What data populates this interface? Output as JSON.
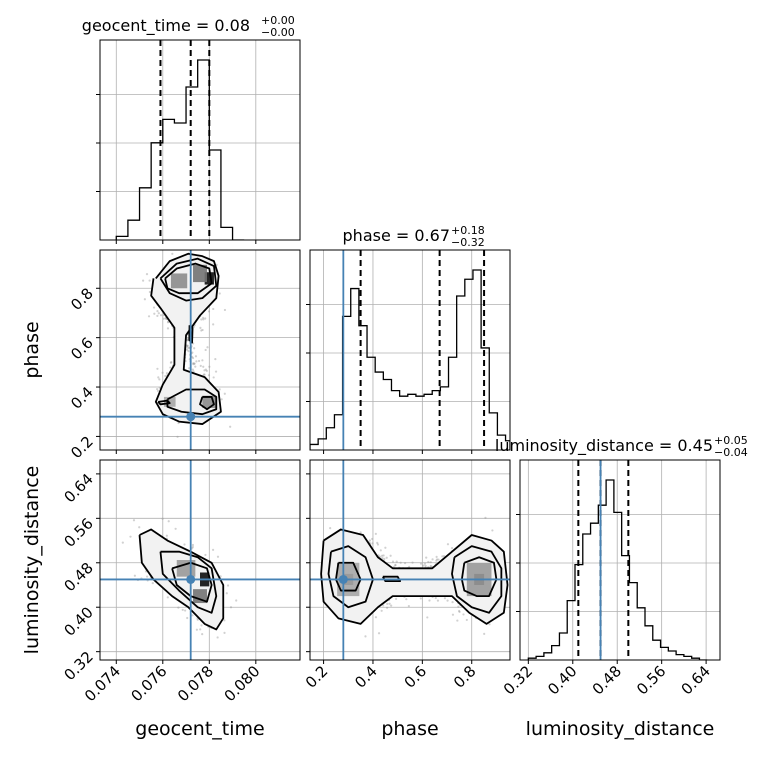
{
  "chart_data": {
    "type": "corner",
    "parameters": [
      "geocent_time",
      "phase",
      "luminosity_distance"
    ],
    "axis_labels": [
      "geocent_time",
      "phase",
      "luminosity_distance"
    ],
    "titles": [
      {
        "text": "geocent_time = 0.08",
        "sup": "+0.00",
        "sub": "−0.00"
      },
      {
        "text": "phase = 0.67",
        "sup": "+0.18",
        "sub": "−0.32"
      },
      {
        "text": "luminosity_distance = 0.45",
        "sup": "+0.05",
        "sub": "−0.04"
      }
    ],
    "ranges": [
      [
        0.0733,
        0.0819
      ],
      [
        0.145,
        0.955
      ],
      [
        0.305,
        0.665
      ]
    ],
    "ticks": [
      {
        "values": [
          0.074,
          0.076,
          0.078,
          0.08
        ],
        "labels": [
          "0.074",
          "0.076",
          "0.078",
          "0.080"
        ]
      },
      {
        "values": [
          0.2,
          0.4,
          0.6,
          0.8
        ],
        "labels": [
          "0.2",
          "0.4",
          "0.6",
          "0.8"
        ]
      },
      {
        "values": [
          0.32,
          0.4,
          0.48,
          0.56,
          0.64
        ],
        "labels": [
          "0.32",
          "0.40",
          "0.48",
          "0.56",
          "0.64"
        ]
      }
    ],
    "truths": [
      0.0772,
      0.28,
      0.45
    ],
    "truth_color": "#4682b4",
    "quantiles": [
      [
        0.0759,
        0.0772,
        0.078
      ],
      [
        0.35,
        0.67,
        0.85
      ],
      [
        0.41,
        0.45,
        0.5
      ]
    ],
    "histograms": [
      {
        "bin_edges": [
          0.074,
          0.0745,
          0.075,
          0.0755,
          0.076,
          0.0765,
          0.077,
          0.0775,
          0.078,
          0.0785,
          0.079,
          0.0795
        ],
        "counts": [
          0.02,
          0.11,
          0.29,
          0.54,
          0.67,
          0.65,
          0.85,
          1.0,
          0.5,
          0.07,
          0.0
        ]
      },
      {
        "bin_edges": [
          0.145,
          0.178,
          0.211,
          0.244,
          0.277,
          0.31,
          0.343,
          0.376,
          0.409,
          0.442,
          0.475,
          0.508,
          0.541,
          0.574,
          0.607,
          0.64,
          0.673,
          0.706,
          0.739,
          0.772,
          0.805,
          0.838,
          0.871,
          0.904,
          0.937,
          0.955
        ],
        "counts": [
          0.03,
          0.06,
          0.12,
          0.19,
          0.72,
          0.87,
          0.67,
          0.5,
          0.42,
          0.38,
          0.32,
          0.29,
          0.3,
          0.29,
          0.3,
          0.32,
          0.34,
          0.5,
          0.83,
          0.92,
          0.97,
          0.55,
          0.2,
          0.08,
          0.05
        ]
      },
      {
        "bin_edges": [
          0.32,
          0.334,
          0.348,
          0.362,
          0.376,
          0.39,
          0.404,
          0.418,
          0.432,
          0.446,
          0.46,
          0.474,
          0.488,
          0.502,
          0.516,
          0.53,
          0.544,
          0.558,
          0.572,
          0.586,
          0.6,
          0.614,
          0.628,
          0.642
        ],
        "counts": [
          0.01,
          0.02,
          0.04,
          0.08,
          0.15,
          0.33,
          0.53,
          0.7,
          0.76,
          0.86,
          1.0,
          0.82,
          0.58,
          0.43,
          0.29,
          0.19,
          0.11,
          0.07,
          0.05,
          0.03,
          0.02,
          0.01,
          0.0
        ]
      }
    ],
    "density_2d": [
      {
        "pair": [
          "geocent_time",
          "phase"
        ],
        "levels": [
          {
            "x": [
              0.0757,
              0.0763,
              0.0771,
              0.0777,
              0.0782,
              0.0784,
              0.0783,
              0.0776,
              0.077,
              0.0769,
              0.0778,
              0.0784,
              0.0785,
              0.0777,
              0.0767,
              0.076,
              0.0757,
              0.076,
              0.0765,
              0.0765,
              0.0759,
              0.0755,
              0.0756
            ],
            "y": [
              0.84,
              0.91,
              0.94,
              0.93,
              0.91,
              0.85,
              0.76,
              0.69,
              0.61,
              0.47,
              0.44,
              0.38,
              0.3,
              0.25,
              0.26,
              0.29,
              0.34,
              0.41,
              0.49,
              0.64,
              0.72,
              0.77,
              0.84
            ]
          },
          {
            "x": [
              0.0759,
              0.0766,
              0.0775,
              0.0782,
              0.0783,
              0.0777,
              0.077,
              0.0763,
              0.0759
            ],
            "y": [
              0.84,
              0.9,
              0.92,
              0.89,
              0.81,
              0.76,
              0.75,
              0.78,
              0.84
            ]
          },
          {
            "x": [
              0.0761,
              0.0766,
              0.0774,
              0.078,
              0.0781,
              0.0775,
              0.0767,
              0.0762,
              0.0761
            ],
            "y": [
              0.84,
              0.88,
              0.9,
              0.88,
              0.82,
              0.78,
              0.78,
              0.8,
              0.84
            ]
          },
          {
            "x": [
              0.0762,
              0.077,
              0.0778,
              0.0783,
              0.0783,
              0.0777,
              0.0768,
              0.0762,
              0.0762
            ],
            "y": [
              0.35,
              0.39,
              0.39,
              0.36,
              0.31,
              0.29,
              0.3,
              0.32,
              0.35
            ]
          },
          {
            "x": [
              0.0777,
              0.0781,
              0.0782,
              0.0779,
              0.0776,
              0.0777
            ],
            "y": [
              0.36,
              0.36,
              0.33,
              0.31,
              0.33,
              0.36
            ]
          },
          {
            "x": [
              0.07715,
              0.07728,
              0.07726,
              0.07714,
              0.07715
            ],
            "y": [
              0.65,
              0.64,
              0.58,
              0.59,
              0.65
            ]
          },
          {
            "x": [
              0.0758,
              0.0762,
              0.0763,
              0.0759,
              0.0758
            ],
            "y": [
              0.34,
              0.345,
              0.335,
              0.33,
              0.34
            ]
          }
        ],
        "hotspots": [
          {
            "x": 0.078,
            "y": 0.84,
            "w": 0.0004,
            "h": 0.05,
            "shade": 0.95
          },
          {
            "x": 0.0776,
            "y": 0.86,
            "w": 0.0006,
            "h": 0.07,
            "shade": 0.55
          },
          {
            "x": 0.0767,
            "y": 0.83,
            "w": 0.0007,
            "h": 0.06,
            "shade": 0.45
          },
          {
            "x": 0.078,
            "y": 0.34,
            "w": 0.0006,
            "h": 0.05,
            "shade": 0.45
          },
          {
            "x": 0.0763,
            "y": 0.34,
            "w": 0.0005,
            "h": 0.04,
            "shade": 0.35
          }
        ]
      },
      {
        "pair": [
          "geocent_time",
          "luminosity_distance"
        ],
        "levels": [
          {
            "x": [
              0.075,
              0.0755,
              0.0762,
              0.0772,
              0.0781,
              0.0786,
              0.0786,
              0.0783,
              0.0778,
              0.0771,
              0.0764,
              0.0756,
              0.0751,
              0.075
            ],
            "y": [
              0.53,
              0.54,
              0.52,
              0.5,
              0.48,
              0.44,
              0.38,
              0.36,
              0.37,
              0.4,
              0.42,
              0.45,
              0.48,
              0.53
            ]
          },
          {
            "x": [
              0.0759,
              0.0767,
              0.0775,
              0.0781,
              0.0783,
              0.0781,
              0.0775,
              0.0767,
              0.076,
              0.0759
            ],
            "y": [
              0.5,
              0.5,
              0.49,
              0.47,
              0.42,
              0.39,
              0.4,
              0.43,
              0.46,
              0.5
            ]
          },
          {
            "x": [
              0.0764,
              0.0772,
              0.0779,
              0.0781,
              0.0779,
              0.0772,
              0.0766,
              0.0764
            ],
            "y": [
              0.47,
              0.48,
              0.47,
              0.44,
              0.41,
              0.42,
              0.44,
              0.47
            ]
          }
        ],
        "hotspots": [
          {
            "x": 0.0778,
            "y": 0.45,
            "w": 0.0004,
            "h": 0.025,
            "shade": 0.95
          },
          {
            "x": 0.0776,
            "y": 0.42,
            "w": 0.0006,
            "h": 0.025,
            "shade": 0.55
          },
          {
            "x": 0.077,
            "y": 0.47,
            "w": 0.0008,
            "h": 0.03,
            "shade": 0.4
          }
        ]
      },
      {
        "pair": [
          "phase",
          "luminosity_distance"
        ],
        "levels": [
          {
            "x": [
              0.2,
              0.27,
              0.36,
              0.42,
              0.48,
              0.56,
              0.64,
              0.72,
              0.8,
              0.88,
              0.93,
              0.945,
              0.93,
              0.86,
              0.79,
              0.72,
              0.64,
              0.56,
              0.48,
              0.42,
              0.35,
              0.26,
              0.2,
              0.19,
              0.2
            ],
            "y": [
              0.52,
              0.54,
              0.53,
              0.49,
              0.47,
              0.47,
              0.47,
              0.5,
              0.53,
              0.52,
              0.5,
              0.44,
              0.39,
              0.37,
              0.39,
              0.42,
              0.42,
              0.42,
              0.42,
              0.4,
              0.37,
              0.38,
              0.41,
              0.46,
              0.52
            ]
          },
          {
            "x": [
              0.23,
              0.3,
              0.37,
              0.4,
              0.37,
              0.3,
              0.24,
              0.22,
              0.23
            ],
            "y": [
              0.5,
              0.51,
              0.49,
              0.45,
              0.41,
              0.4,
              0.42,
              0.46,
              0.5
            ]
          },
          {
            "x": [
              0.73,
              0.8,
              0.88,
              0.92,
              0.92,
              0.87,
              0.8,
              0.74,
              0.72,
              0.73
            ],
            "y": [
              0.49,
              0.51,
              0.5,
              0.47,
              0.42,
              0.39,
              0.4,
              0.42,
              0.46,
              0.49
            ]
          },
          {
            "x": [
              0.77,
              0.83,
              0.89,
              0.9,
              0.87,
              0.82,
              0.77,
              0.76,
              0.77
            ],
            "y": [
              0.48,
              0.49,
              0.48,
              0.45,
              0.42,
              0.42,
              0.43,
              0.45,
              0.48
            ]
          },
          {
            "x": [
              0.26,
              0.32,
              0.35,
              0.33,
              0.27,
              0.25,
              0.26
            ],
            "y": [
              0.48,
              0.48,
              0.45,
              0.43,
              0.43,
              0.45,
              0.48
            ]
          },
          {
            "x": [
              0.44,
              0.5,
              0.51,
              0.45,
              0.44
            ],
            "y": [
              0.455,
              0.455,
              0.447,
              0.447,
              0.455
            ]
          }
        ],
        "hotspots": [
          {
            "x": 0.83,
            "y": 0.45,
            "w": 0.04,
            "h": 0.02,
            "shade": 0.95
          },
          {
            "x": 0.83,
            "y": 0.45,
            "w": 0.1,
            "h": 0.06,
            "shade": 0.4
          },
          {
            "x": 0.3,
            "y": 0.45,
            "w": 0.04,
            "h": 0.02,
            "shade": 0.85
          },
          {
            "x": 0.3,
            "y": 0.45,
            "w": 0.09,
            "h": 0.06,
            "shade": 0.35
          }
        ]
      }
    ],
    "grid": true
  }
}
